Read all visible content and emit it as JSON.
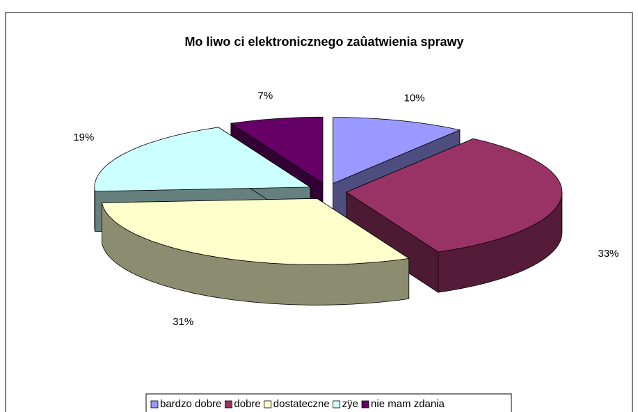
{
  "chart_data": {
    "type": "pie",
    "title": "Mo liwo ci elektronicznego zaûatwienia sprawy",
    "categories": [
      "bardzo dobre",
      "dobre",
      "dostateczne",
      "zÿe",
      "nie mam zdania"
    ],
    "values": [
      10,
      33,
      31,
      19,
      7
    ],
    "value_labels": [
      "10%",
      "33%",
      "31%",
      "19%",
      "7%"
    ],
    "colors": [
      "#9999ff",
      "#993366",
      "#ffffcc",
      "#ccffff",
      "#660066"
    ],
    "legend": "bottom"
  }
}
